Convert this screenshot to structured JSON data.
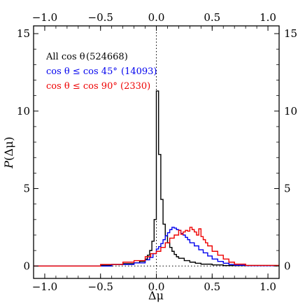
{
  "chart_data": {
    "type": "line",
    "style": "step-histogram",
    "xlabel": "Δμ",
    "ylabel_italic": "P",
    "ylabel_rest": "(Δμ)",
    "xlim": [
      -1.1,
      1.1
    ],
    "ylim": [
      -0.8,
      15.5
    ],
    "xticks": [
      -1.0,
      -0.5,
      0.0,
      0.5,
      1.0
    ],
    "xtick_labels": [
      "−1.0",
      "−0.5",
      "0.0",
      "0.5",
      "1.0"
    ],
    "yticks": [
      0,
      5,
      10,
      15
    ],
    "ytick_labels": [
      "0",
      "5",
      "10",
      "15"
    ],
    "grid": false,
    "legend_placement": "top-left",
    "reference_lines": {
      "vertical_x": 0.0,
      "horizontal_y": 0.0,
      "style": "dotted"
    },
    "series": [
      {
        "name": "All cos θ",
        "count": "(524668)",
        "color": "#000000",
        "x": [
          -1.1,
          -0.5,
          -0.4,
          -0.3,
          -0.2,
          -0.15,
          -0.1,
          -0.08,
          -0.06,
          -0.04,
          -0.02,
          0.0,
          0.02,
          0.04,
          0.06,
          0.08,
          0.1,
          0.12,
          0.14,
          0.16,
          0.18,
          0.2,
          0.25,
          0.3,
          0.35,
          0.4,
          0.5,
          0.6,
          1.1
        ],
        "y": [
          0.0,
          0.05,
          0.1,
          0.15,
          0.2,
          0.3,
          0.45,
          0.7,
          1.0,
          1.6,
          3.0,
          11.3,
          7.2,
          4.3,
          2.7,
          1.95,
          1.5,
          1.2,
          0.95,
          0.75,
          0.6,
          0.5,
          0.35,
          0.25,
          0.18,
          0.12,
          0.07,
          0.03,
          0.03
        ]
      },
      {
        "name": "cos θ ≤ cos 45°",
        "count": "(14093)",
        "color": "#0000ee",
        "x": [
          -1.1,
          -0.4,
          -0.2,
          -0.1,
          -0.06,
          -0.03,
          0.0,
          0.02,
          0.04,
          0.06,
          0.08,
          0.1,
          0.12,
          0.14,
          0.16,
          0.18,
          0.2,
          0.22,
          0.24,
          0.26,
          0.28,
          0.3,
          0.34,
          0.38,
          0.42,
          0.46,
          0.5,
          0.55,
          0.6,
          0.65,
          0.7,
          0.8,
          1.1
        ],
        "y": [
          0.0,
          0.1,
          0.2,
          0.4,
          0.55,
          0.8,
          1.1,
          1.25,
          1.45,
          1.7,
          1.95,
          2.15,
          2.35,
          2.5,
          2.45,
          2.35,
          2.3,
          2.1,
          2.0,
          1.85,
          1.7,
          1.5,
          1.3,
          1.05,
          0.85,
          0.65,
          0.45,
          0.3,
          0.18,
          0.1,
          0.05,
          0.02,
          0.02
        ]
      },
      {
        "name": "cos θ ≤ cos 90°",
        "count": "(2330)",
        "color": "#ee0000",
        "x": [
          -1.1,
          -0.5,
          -0.3,
          -0.2,
          -0.1,
          -0.05,
          0.0,
          0.04,
          0.08,
          0.12,
          0.16,
          0.2,
          0.22,
          0.24,
          0.26,
          0.28,
          0.3,
          0.32,
          0.34,
          0.36,
          0.38,
          0.4,
          0.42,
          0.44,
          0.46,
          0.5,
          0.55,
          0.6,
          0.65,
          0.7,
          0.8,
          1.1
        ],
        "y": [
          0.0,
          0.1,
          0.25,
          0.35,
          0.6,
          0.8,
          0.95,
          1.2,
          1.5,
          1.8,
          2.0,
          2.3,
          2.05,
          2.2,
          2.3,
          2.25,
          2.5,
          2.35,
          2.2,
          2.0,
          2.4,
          1.9,
          1.7,
          1.5,
          1.3,
          0.95,
          0.7,
          0.45,
          0.25,
          0.12,
          0.04,
          0.04
        ]
      }
    ]
  }
}
